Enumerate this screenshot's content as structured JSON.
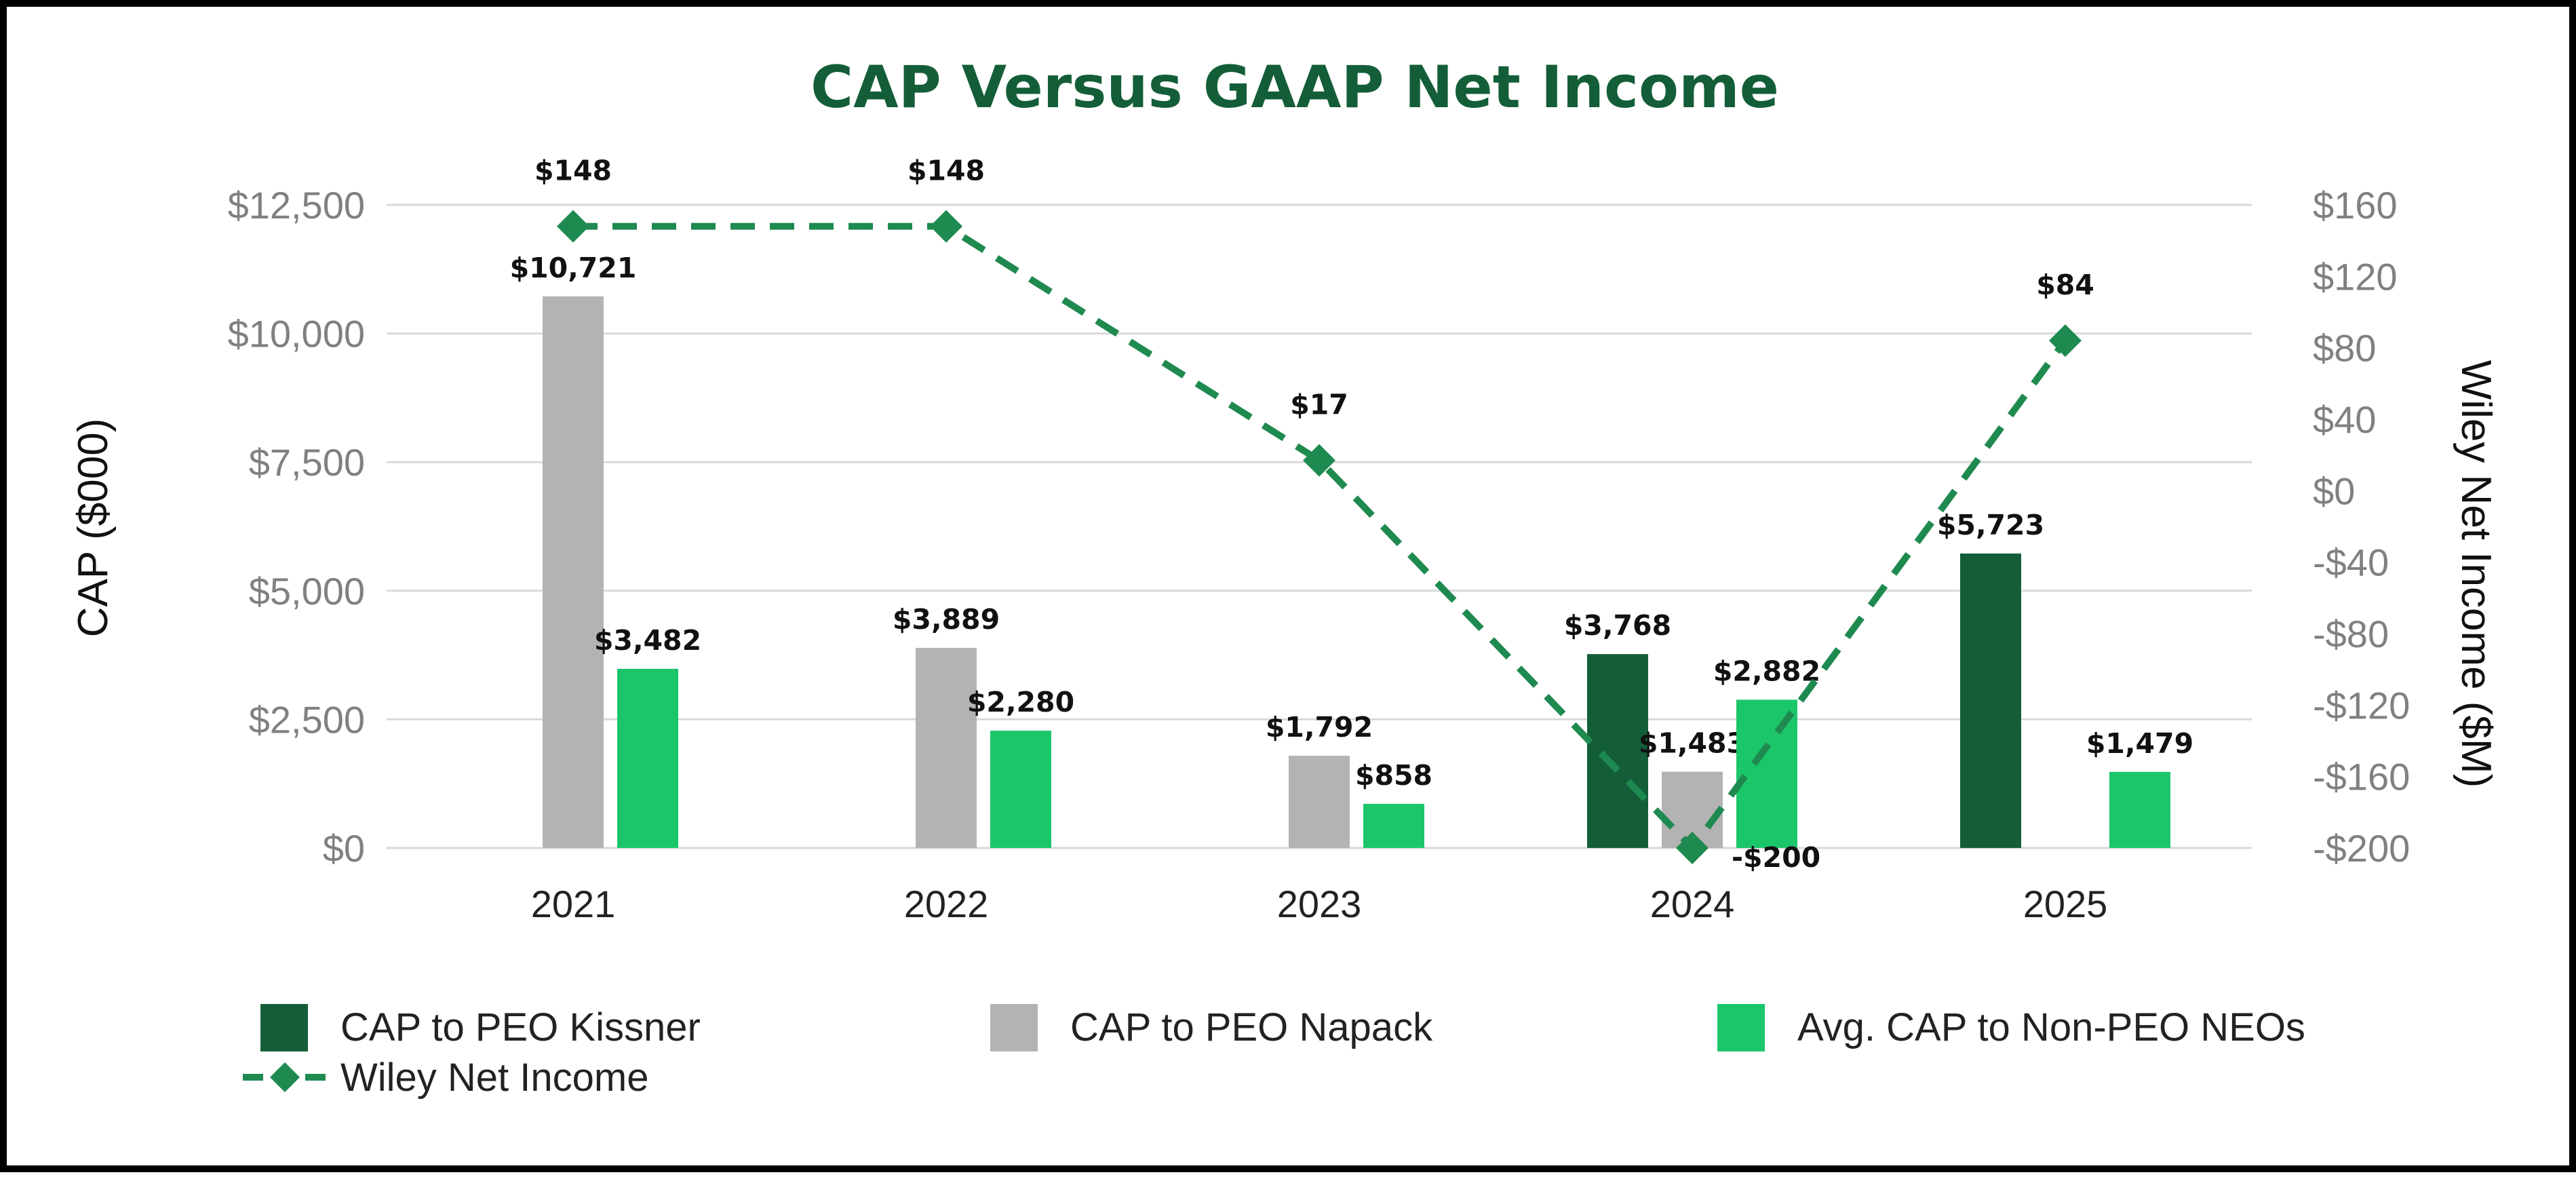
{
  "chart_data": {
    "type": "bar",
    "title": "CAP Versus GAAP Net Income",
    "categories": [
      "2021",
      "2022",
      "2023",
      "2024",
      "2025"
    ],
    "ylabel": "CAP ($000)",
    "y2label": "Wiley Net Income ($M)",
    "ylim": [
      0,
      12500
    ],
    "y2lim": [
      -200,
      160
    ],
    "yticks": [
      0,
      2500,
      5000,
      7500,
      10000,
      12500
    ],
    "ytick_labels": [
      "$0",
      "$2,500",
      "$5,000",
      "$7,500",
      "$10,000",
      "$12,500"
    ],
    "y2ticks": [
      -200,
      -160,
      -120,
      -80,
      -40,
      0,
      40,
      80,
      120,
      160
    ],
    "y2tick_labels": [
      "-$200",
      "-$160",
      "-$120",
      "-$80",
      "-$40",
      "$0",
      "$40",
      "$80",
      "$120",
      "$160"
    ],
    "grid": true,
    "legend_position": "bottom",
    "series": [
      {
        "name": "CAP to PEO Kissner",
        "kind": "bar",
        "color": "#135e38",
        "values": [
          null,
          null,
          null,
          3768,
          5723
        ],
        "labels": [
          "",
          "",
          "",
          "$3,768",
          "$5,723"
        ]
      },
      {
        "name": "CAP to PEO Napack",
        "kind": "bar",
        "color": "#b3b3b3",
        "values": [
          10721,
          3889,
          1792,
          1483,
          null
        ],
        "labels": [
          "$10,721",
          "$3,889",
          "$1,792",
          "$1,483",
          ""
        ]
      },
      {
        "name": "Avg. CAP to Non-PEO NEOs",
        "kind": "bar",
        "color": "#1bc66b",
        "values": [
          3482,
          2280,
          858,
          2882,
          1479
        ],
        "labels": [
          "$3,482",
          "$2,280",
          "$858",
          "$2,882",
          "$1,479"
        ]
      },
      {
        "name": "Wiley Net Income",
        "kind": "line",
        "axis": "secondary",
        "color": "#1f8a50",
        "line_style": "dashed",
        "marker": "diamond",
        "values": [
          148,
          148,
          17,
          -200,
          84
        ],
        "labels": [
          "$148",
          "$148",
          "$17",
          "-$200",
          "$84"
        ]
      }
    ]
  },
  "colors": {
    "title": "#135e38",
    "grid": "#d9d9d9",
    "frame": "#000000"
  }
}
